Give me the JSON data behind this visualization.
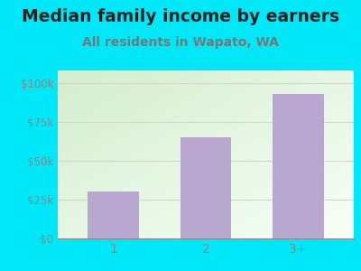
{
  "categories": [
    "1",
    "2",
    "3+"
  ],
  "values": [
    30000,
    65000,
    93000
  ],
  "bar_color": "#b8a8d0",
  "title": "Median family income by earners",
  "subtitle": "All residents in Wapato, WA",
  "title_fontsize": 13.5,
  "subtitle_fontsize": 10,
  "title_color": "#222222",
  "subtitle_color": "#777777",
  "ylabel_ticks": [
    0,
    25000,
    50000,
    75000,
    100000
  ],
  "ylabel_labels": [
    "$0",
    "$25k",
    "$50k",
    "$75k",
    "$100k"
  ],
  "ylim": [
    0,
    108000
  ],
  "background_outer": "#00e8f8",
  "plot_bg_color_topleft": "#c8e8c0",
  "plot_bg_color_bottomright": "#f8fff8",
  "tick_color": "#888888",
  "grid_color": "#d0d8c8",
  "subtitle_color_hex": "#888877"
}
